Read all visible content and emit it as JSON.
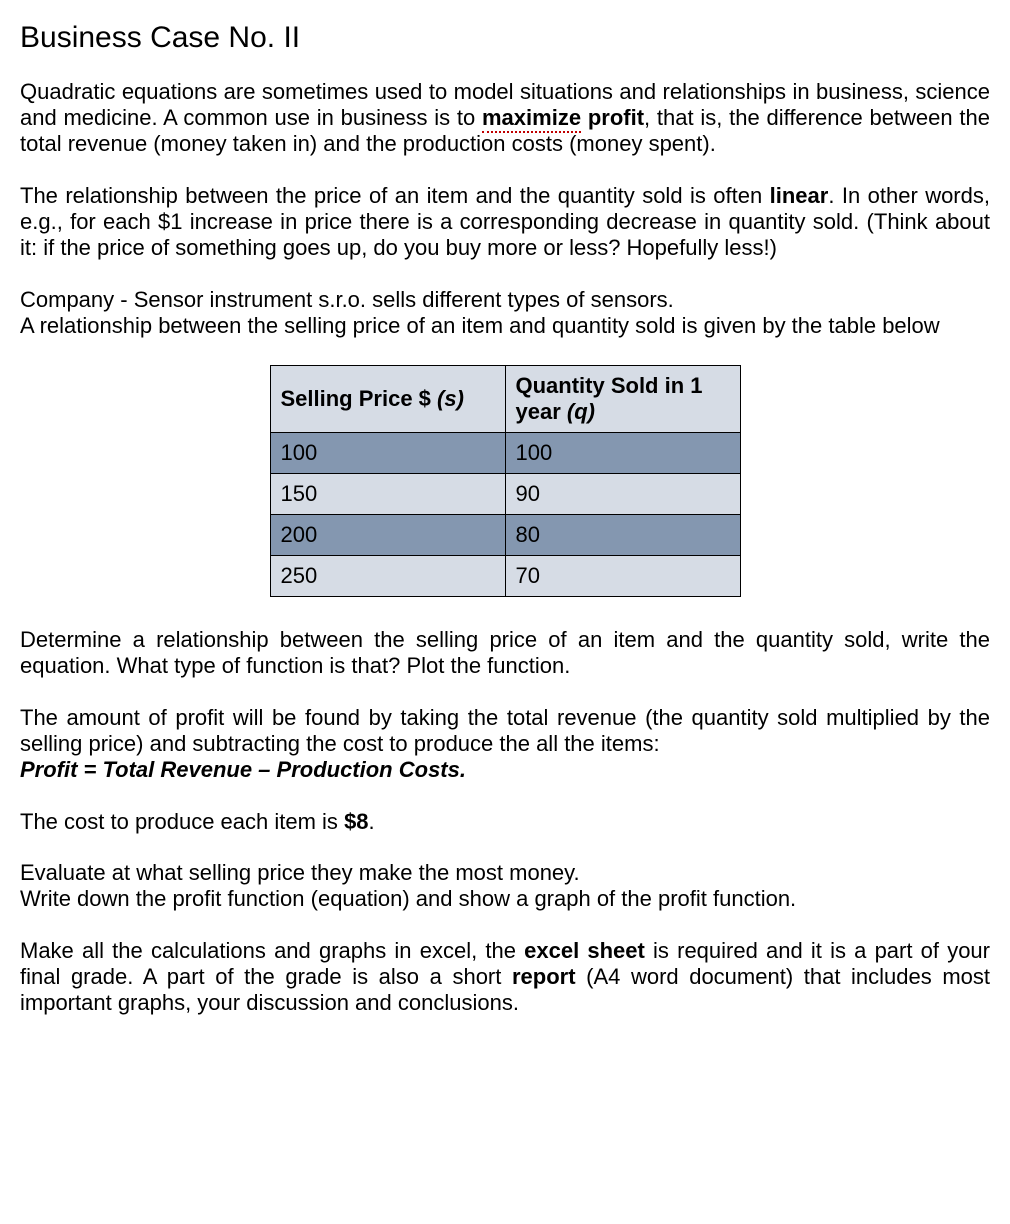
{
  "title": "Business Case No. II",
  "para1_a": "Quadratic equations are sometimes used to model situations and relationships in business, science and medicine. A common use in business is to ",
  "para1_maximize": "maximize",
  "para1_b": " profit",
  "para1_c": ", that is, the difference between the total revenue (money taken in) and the production costs (money spent).",
  "para2_a": "The relationship between the price of an item and the quantity sold is often ",
  "para2_linear": "linear",
  "para2_b": ". In other words, e.g., for each $1 increase in price there is a corresponding decrease in quantity sold. (Think about it: if the price of something goes up, do you buy more or less? Hopefully less!)",
  "para3_line1": "Company - Sensor instrument s.r.o. sells different types of sensors.",
  "para3_line2": "A relationship between the selling price of an item and quantity sold is given by the table below",
  "table": {
    "header1_a": "Selling Price $ ",
    "header1_b": "(s)",
    "header2_a": "Quantity Sold in 1 year ",
    "header2_b": "(q)",
    "rows": [
      {
        "price": "100",
        "qty": "100",
        "rowclass": "row-dark"
      },
      {
        "price": "150",
        "qty": "90",
        "rowclass": "row-light"
      },
      {
        "price": "200",
        "qty": "80",
        "rowclass": "row-dark"
      },
      {
        "price": "250",
        "qty": "70",
        "rowclass": "row-light"
      }
    ],
    "colors": {
      "header_bg": "#d6dce5",
      "dark_bg": "#8497b0",
      "light_bg": "#d6dce5",
      "border": "#000000"
    }
  },
  "para4": "Determine a relationship between the selling price of an item and the quantity sold, write the equation. What type of function is that? Plot the function.",
  "para5_a": "The amount of profit will be found by taking the total revenue (the quantity sold multiplied by the selling price) and subtracting the cost to produce the all the items:",
  "para5_formula": "Profit = Total Revenue – Production Costs.",
  "para6_a": "The cost to produce each item is ",
  "para6_b": "$8",
  "para6_c": ".",
  "para7_line1": "Evaluate at what selling price they make the most money.",
  "para7_line2": "Write down the profit function (equation) and show a graph of the profit function.",
  "para8_a": "Make all the calculations and graphs in excel, the ",
  "para8_b": "excel sheet",
  "para8_c": " is required and it is a part of your final grade. A part of the grade is also a short ",
  "para8_d": "report",
  "para8_e": " (A4 word document) that includes most important graphs, your discussion and conclusions."
}
